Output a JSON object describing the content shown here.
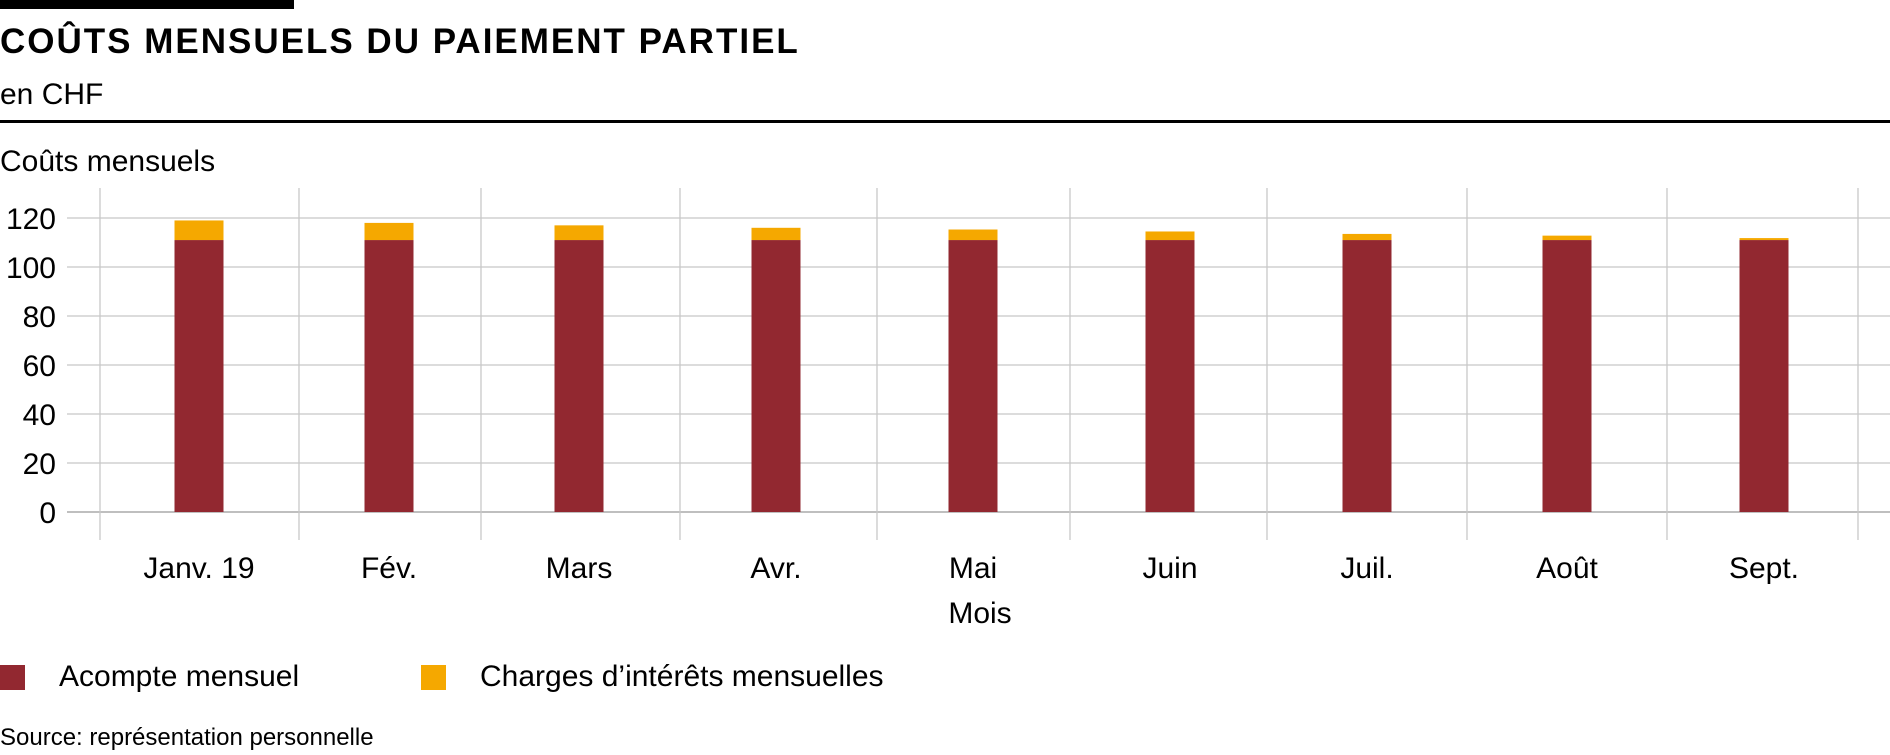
{
  "title": "COÛTS MENSUELS DU PAIEMENT PARTIEL",
  "subtitle": "en CHF",
  "source": "Source: représentation personnelle",
  "colors": {
    "acompte": "#922830",
    "interets": "#f5a800",
    "grid": "#c8c8c8",
    "axis": "#999999"
  },
  "chart_data": {
    "type": "bar",
    "stacked": true,
    "title": "COÛTS MENSUELS DU PAIEMENT PARTIEL",
    "subtitle": "en CHF",
    "xlabel": "Mois",
    "ylabel": "Coûts mensuels",
    "ylim": [
      0,
      132
    ],
    "yticks": [
      0,
      20,
      40,
      60,
      80,
      100,
      120
    ],
    "grid": true,
    "legend_position": "bottom-left",
    "categories": [
      "Janv. 19",
      "Fév.",
      "Mars",
      "Avr.",
      "Mai",
      "Juin",
      "Juil.",
      "Août",
      "Sept."
    ],
    "series": [
      {
        "name": "Acompte mensuel",
        "color": "#922830",
        "values": [
          111,
          111,
          111,
          111,
          111,
          111,
          111,
          111,
          111
        ]
      },
      {
        "name": "Charges d’intérêts mensuelles",
        "color": "#f5a800",
        "values": [
          8,
          7,
          6,
          5,
          4.3,
          3.5,
          2.5,
          1.8,
          0.8
        ]
      }
    ]
  }
}
